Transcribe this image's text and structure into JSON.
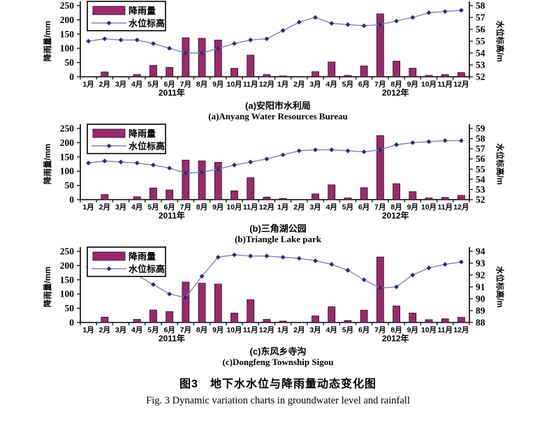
{
  "caption": {
    "zh": "图3　地下水水位与降雨量动态变化图",
    "en": "Fig. 3 Dynamic variation charts in groundwater level and rainfall"
  },
  "colors": {
    "bar": "#9a2b6b",
    "bar_edge": "#241022",
    "line": "#8080c5",
    "marker": "#2b2b7e",
    "axis": "#000000"
  },
  "chart_data": {
    "type": "bar+line multi-panel",
    "categories": [
      "1月",
      "2月",
      "3月",
      "4月",
      "5月",
      "6月",
      "7月",
      "8月",
      "9月",
      "10月",
      "11月",
      "12月",
      "1月",
      "2月",
      "3月",
      "4月",
      "5月",
      "6月",
      "7月",
      "8月",
      "9月",
      "10月",
      "11月",
      "12月"
    ],
    "year_labels": [
      "2011年",
      "2012年"
    ],
    "legend": {
      "rain": "降雨量",
      "level": "水位标高"
    },
    "ylabel_left": "降雨量/mm",
    "ylabel_right": "水位标高/m",
    "ylim_left": [
      0,
      250
    ],
    "left_ticks": [
      0,
      50,
      100,
      150,
      200,
      250
    ],
    "grid": false,
    "legend_position": "top-left",
    "panels": [
      {
        "title_zh": "(a)安阳市水利局",
        "title_en": "(a)Anyang Water Resources Bureau",
        "ylim_right": [
          52,
          58
        ],
        "right_ticks": [
          52,
          53,
          54,
          55,
          56,
          57,
          58
        ],
        "rainfall_mm": [
          0,
          17,
          0,
          8,
          40,
          33,
          137,
          135,
          129,
          30,
          76,
          8,
          3,
          0,
          18,
          52,
          5,
          38,
          221,
          55,
          30,
          5,
          8,
          15
        ],
        "water_level_m": [
          55.0,
          55.2,
          55.1,
          55.1,
          54.8,
          54.4,
          54.0,
          54.0,
          54.4,
          54.8,
          55.1,
          55.2,
          55.9,
          56.6,
          57.0,
          56.5,
          56.4,
          56.3,
          56.4,
          56.7,
          57.0,
          57.4,
          57.5,
          57.6
        ]
      },
      {
        "title_zh": "(b)三角湖公园",
        "title_en": "(b)Triangle Lake park",
        "ylim_right": [
          52,
          59
        ],
        "right_ticks": [
          52,
          53,
          54,
          55,
          56,
          57,
          58,
          59
        ],
        "rainfall_mm": [
          0,
          18,
          0,
          10,
          41,
          34,
          139,
          136,
          131,
          31,
          77,
          9,
          4,
          0,
          20,
          52,
          6,
          42,
          225,
          56,
          28,
          6,
          8,
          15
        ],
        "water_level_m": [
          55.6,
          55.8,
          55.7,
          55.6,
          55.4,
          55.1,
          54.6,
          54.7,
          55.0,
          55.4,
          55.7,
          56.0,
          56.4,
          56.8,
          56.9,
          56.9,
          56.8,
          56.7,
          56.9,
          57.4,
          57.6,
          57.7,
          57.8,
          57.8
        ]
      },
      {
        "title_zh": "(c)东风乡寺沟",
        "title_en": "(c)Dongfeng Township Sigou",
        "ylim_right": [
          88,
          94
        ],
        "right_ticks": [
          88,
          89,
          90,
          91,
          92,
          93,
          94
        ],
        "rainfall_mm": [
          0,
          19,
          0,
          11,
          44,
          38,
          142,
          138,
          135,
          33,
          80,
          11,
          5,
          0,
          23,
          55,
          7,
          43,
          230,
          58,
          33,
          10,
          13,
          18
        ],
        "water_level_m": [
          92.7,
          92.5,
          92.4,
          92.0,
          91.2,
          90.4,
          90.1,
          91.9,
          93.5,
          93.7,
          93.6,
          93.6,
          93.5,
          93.4,
          93.2,
          92.9,
          92.4,
          91.6,
          90.9,
          91.0,
          92.0,
          92.6,
          92.9,
          93.1
        ]
      }
    ]
  }
}
